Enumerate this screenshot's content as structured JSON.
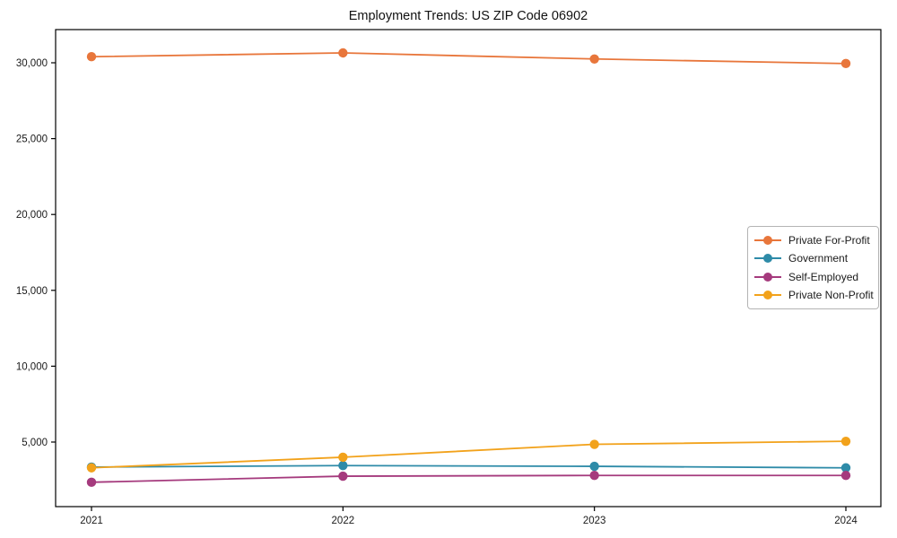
{
  "page": {
    "background": "#ffffff"
  },
  "chart_data": {
    "type": "line",
    "title": "Employment Trends: US ZIP Code 06902",
    "xlabel": "",
    "ylabel": "",
    "x": [
      2021,
      2022,
      2023,
      2024
    ],
    "x_tick_labels": [
      "2021",
      "2022",
      "2023",
      "2024"
    ],
    "y_ticks": [
      5000,
      10000,
      15000,
      20000,
      25000,
      30000
    ],
    "y_tick_labels": [
      "5,000",
      "10,000",
      "15,000",
      "20,000",
      "25,000",
      "30,000"
    ],
    "ylim": [
      744,
      32187
    ],
    "grid": false,
    "legend_position": "center right",
    "axis_color": "#000000",
    "series": [
      {
        "name": "Private For-Profit",
        "color": "#E8763B",
        "values": [
          30400,
          30650,
          30250,
          29950
        ]
      },
      {
        "name": "Government",
        "color": "#2E8BA8",
        "values": [
          3350,
          3450,
          3400,
          3300
        ]
      },
      {
        "name": "Self-Employed",
        "color": "#A53A7D",
        "values": [
          2350,
          2750,
          2800,
          2800
        ]
      },
      {
        "name": "Private Non-Profit",
        "color": "#F2A21B",
        "values": [
          3300,
          4000,
          4850,
          5050
        ]
      }
    ]
  }
}
